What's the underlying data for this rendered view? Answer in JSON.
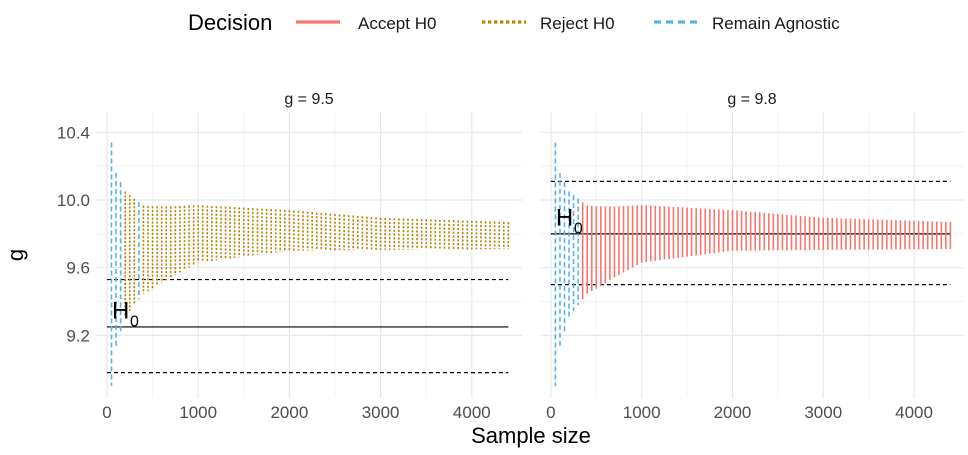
{
  "chart_data": {
    "type": "errorbar-facets",
    "ylabel": "g",
    "xlabel": "Sample size",
    "legend": {
      "title": "Decision",
      "position": "top",
      "entries": [
        {
          "label": "Accept H0",
          "color": "#F8766D",
          "linetype": "solid"
        },
        {
          "label": "Reject H0",
          "color": "#B8860B",
          "linetype": "dotted"
        },
        {
          "label": "Remain Agnostic",
          "color": "#56B4E9",
          "linetype": "dashed"
        }
      ]
    },
    "xlim": [
      -120,
      4550
    ],
    "ylim": [
      8.83,
      10.52
    ],
    "x_ticks": [
      0,
      1000,
      2000,
      3000,
      4000
    ],
    "y_ticks": [
      9.2,
      9.6,
      10.0,
      10.4
    ],
    "y_tick_labels": [
      "9.2",
      "9.6",
      "10.0",
      "10.4"
    ],
    "sample_step": 50,
    "sample_max": 4400,
    "decision_colors": {
      "accept": "#F8766D",
      "reject": "#B8860B",
      "agnostic": "#56B4E9"
    },
    "panels": [
      {
        "title": "g = 9.5",
        "h0": 9.25,
        "region": [
          8.98,
          9.53
        ],
        "h0_label": "H",
        "h0_sub": "0",
        "h0_label_pos": [
          55,
          9.3
        ],
        "center": [
          [
            50,
            9.62
          ],
          [
            200,
            9.68
          ],
          [
            500,
            9.72
          ],
          [
            1000,
            9.8
          ],
          [
            2000,
            9.82
          ],
          [
            3000,
            9.8
          ],
          [
            4400,
            9.79
          ]
        ],
        "halfwidth": [
          [
            50,
            0.72
          ],
          [
            100,
            0.52
          ],
          [
            200,
            0.37
          ],
          [
            400,
            0.26
          ],
          [
            700,
            0.21
          ],
          [
            1000,
            0.17
          ],
          [
            2000,
            0.12
          ],
          [
            3000,
            0.095
          ],
          [
            4400,
            0.08
          ]
        ],
        "decisions": [
          [
            0,
            "agnostic"
          ],
          [
            175,
            "reject"
          ],
          [
            315,
            "agnostic"
          ],
          [
            375,
            "reject"
          ]
        ]
      },
      {
        "title": "g = 9.8",
        "h0": 9.8,
        "region": [
          9.5,
          10.11
        ],
        "h0_label": "H",
        "h0_sub": "0",
        "h0_label_pos": [
          55,
          9.85
        ],
        "center": [
          [
            50,
            9.62
          ],
          [
            200,
            9.68
          ],
          [
            500,
            9.72
          ],
          [
            1000,
            9.8
          ],
          [
            2000,
            9.82
          ],
          [
            3000,
            9.8
          ],
          [
            4400,
            9.79
          ]
        ],
        "halfwidth": [
          [
            50,
            0.72
          ],
          [
            100,
            0.52
          ],
          [
            200,
            0.37
          ],
          [
            400,
            0.26
          ],
          [
            700,
            0.21
          ],
          [
            1000,
            0.17
          ],
          [
            2000,
            0.12
          ],
          [
            3000,
            0.095
          ],
          [
            4400,
            0.08
          ]
        ],
        "decisions": [
          [
            0,
            "agnostic"
          ],
          [
            330,
            "accept"
          ]
        ]
      }
    ]
  }
}
